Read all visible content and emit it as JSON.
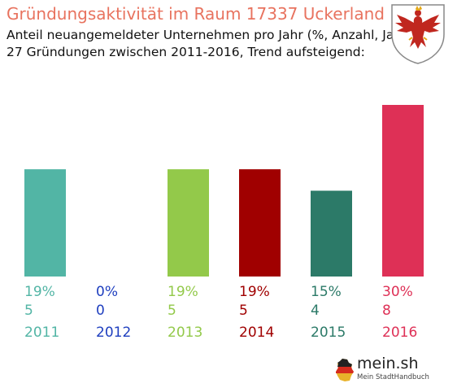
{
  "header": {
    "title": "Gründungsaktivität im Raum 17337 Uckerland",
    "subtitle_line1": "Anteil neuangemeldeter Unternehmen pro Jahr (%, Anzahl, Jahr)",
    "subtitle_line2": "27 Gründungen zwischen 2011-2016, Trend aufsteigend:"
  },
  "crest": {
    "icon": "brandenburg-eagle-crest-icon",
    "shield_color": "#ffffff",
    "eagle_color": "#c0271f",
    "claw_color": "#e6a817"
  },
  "logo": {
    "name": "mein.sh",
    "tagline": "Mein StadtHandbuch",
    "icon": "germany-map-icon"
  },
  "chart_data": {
    "type": "bar",
    "title": "Gründungsaktivität im Raum 17337 Uckerland",
    "categories": [
      "2011",
      "2012",
      "2013",
      "2014",
      "2015",
      "2016"
    ],
    "values": [
      5,
      0,
      5,
      5,
      4,
      8
    ],
    "percentages": [
      "19%",
      "0%",
      "19%",
      "19%",
      "15%",
      "30%"
    ],
    "counts": [
      "5",
      "0",
      "5",
      "5",
      "4",
      "8"
    ],
    "colors": [
      "#52b5a5",
      "#1f3fbf",
      "#93c94a",
      "#a00000",
      "#2c7a68",
      "#de3056"
    ],
    "ylim": [
      0,
      8
    ],
    "grid": false,
    "legend": "none"
  }
}
